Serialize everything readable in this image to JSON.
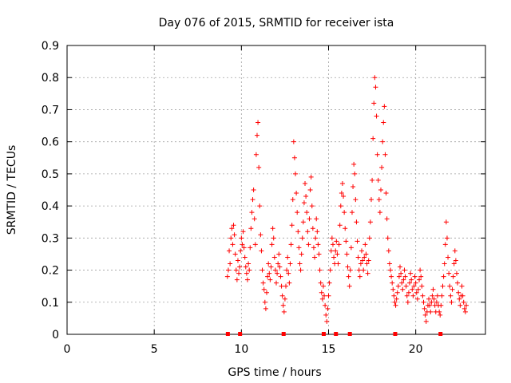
{
  "chart_data": {
    "type": "scatter",
    "title": "Day 076 of 2015, SRMTID for receiver ista",
    "xlabel": "GPS time / hours",
    "ylabel": "SRMTID / TECUs",
    "xlim": [
      0,
      24
    ],
    "ylim": [
      0,
      0.9
    ],
    "xticks": [
      0,
      5,
      10,
      15,
      20
    ],
    "yticks": [
      0,
      0.1,
      0.2,
      0.3,
      0.4,
      0.5,
      0.6,
      0.7,
      0.8,
      0.9
    ],
    "xtick_labels": [
      "0",
      "5",
      "10",
      "15",
      "20"
    ],
    "ytick_labels": [
      "0",
      "0.1",
      "0.2",
      "0.3",
      "0.4",
      "0.5",
      "0.6",
      "0.7",
      "0.8",
      "0.9"
    ],
    "grid": true,
    "marker": "+",
    "color": "#ff0000",
    "baseline_marks_x": [
      9.2,
      9.9,
      12.4,
      14.7,
      15.4,
      16.2,
      18.8,
      21.4
    ],
    "series": [
      {
        "name": "SRMTID",
        "points": [
          [
            9.2,
            0.18
          ],
          [
            9.25,
            0.2
          ],
          [
            9.3,
            0.26
          ],
          [
            9.35,
            0.22
          ],
          [
            9.4,
            0.3
          ],
          [
            9.45,
            0.33
          ],
          [
            9.5,
            0.28
          ],
          [
            9.55,
            0.34
          ],
          [
            9.6,
            0.31
          ],
          [
            9.65,
            0.25
          ],
          [
            9.7,
            0.2
          ],
          [
            9.75,
            0.17
          ],
          [
            9.8,
            0.23
          ],
          [
            9.85,
            0.19
          ],
          [
            9.9,
            0.21
          ],
          [
            9.95,
            0.26
          ],
          [
            10.0,
            0.3
          ],
          [
            10.05,
            0.28
          ],
          [
            10.1,
            0.32
          ],
          [
            10.15,
            0.27
          ],
          [
            10.2,
            0.24
          ],
          [
            10.25,
            0.21
          ],
          [
            10.3,
            0.19
          ],
          [
            10.35,
            0.17
          ],
          [
            10.4,
            0.22
          ],
          [
            10.45,
            0.2
          ],
          [
            10.5,
            0.27
          ],
          [
            10.55,
            0.33
          ],
          [
            10.6,
            0.38
          ],
          [
            10.65,
            0.42
          ],
          [
            10.7,
            0.45
          ],
          [
            10.75,
            0.36
          ],
          [
            10.8,
            0.28
          ],
          [
            10.85,
            0.56
          ],
          [
            10.9,
            0.62
          ],
          [
            10.95,
            0.66
          ],
          [
            11.0,
            0.52
          ],
          [
            11.05,
            0.4
          ],
          [
            11.1,
            0.31
          ],
          [
            11.15,
            0.26
          ],
          [
            11.2,
            0.2
          ],
          [
            11.25,
            0.16
          ],
          [
            11.3,
            0.14
          ],
          [
            11.35,
            0.1
          ],
          [
            11.4,
            0.08
          ],
          [
            11.45,
            0.13
          ],
          [
            11.5,
            0.18
          ],
          [
            11.55,
            0.22
          ],
          [
            11.6,
            0.19
          ],
          [
            11.65,
            0.17
          ],
          [
            11.7,
            0.21
          ],
          [
            11.75,
            0.28
          ],
          [
            11.8,
            0.33
          ],
          [
            11.85,
            0.3
          ],
          [
            11.9,
            0.24
          ],
          [
            11.95,
            0.2
          ],
          [
            12.0,
            0.16
          ],
          [
            12.05,
            0.19
          ],
          [
            12.1,
            0.22
          ],
          [
            12.15,
            0.25
          ],
          [
            12.2,
            0.21
          ],
          [
            12.25,
            0.18
          ],
          [
            12.3,
            0.15
          ],
          [
            12.35,
            0.12
          ],
          [
            12.4,
            0.09
          ],
          [
            12.45,
            0.07
          ],
          [
            12.5,
            0.11
          ],
          [
            12.55,
            0.15
          ],
          [
            12.6,
            0.2
          ],
          [
            12.65,
            0.24
          ],
          [
            12.7,
            0.19
          ],
          [
            12.75,
            0.16
          ],
          [
            12.8,
            0.22
          ],
          [
            12.85,
            0.28
          ],
          [
            12.9,
            0.34
          ],
          [
            12.95,
            0.42
          ],
          [
            13.0,
            0.6
          ],
          [
            13.05,
            0.55
          ],
          [
            13.1,
            0.5
          ],
          [
            13.15,
            0.44
          ],
          [
            13.2,
            0.38
          ],
          [
            13.25,
            0.32
          ],
          [
            13.3,
            0.27
          ],
          [
            13.35,
            0.22
          ],
          [
            13.4,
            0.2
          ],
          [
            13.45,
            0.25
          ],
          [
            13.5,
            0.3
          ],
          [
            13.55,
            0.35
          ],
          [
            13.6,
            0.41
          ],
          [
            13.65,
            0.47
          ],
          [
            13.7,
            0.43
          ],
          [
            13.75,
            0.38
          ],
          [
            13.8,
            0.32
          ],
          [
            13.85,
            0.28
          ],
          [
            13.9,
            0.36
          ],
          [
            13.95,
            0.45
          ],
          [
            14.0,
            0.49
          ],
          [
            14.05,
            0.4
          ],
          [
            14.1,
            0.33
          ],
          [
            14.15,
            0.27
          ],
          [
            14.2,
            0.24
          ],
          [
            14.25,
            0.3
          ],
          [
            14.3,
            0.36
          ],
          [
            14.35,
            0.32
          ],
          [
            14.4,
            0.28
          ],
          [
            14.45,
            0.25
          ],
          [
            14.5,
            0.2
          ],
          [
            14.55,
            0.16
          ],
          [
            14.6,
            0.13
          ],
          [
            14.65,
            0.11
          ],
          [
            14.7,
            0.15
          ],
          [
            14.75,
            0.12
          ],
          [
            14.8,
            0.09
          ],
          [
            14.85,
            0.06
          ],
          [
            14.9,
            0.04
          ],
          [
            14.95,
            0.08
          ],
          [
            15.0,
            0.12
          ],
          [
            15.05,
            0.16
          ],
          [
            15.1,
            0.2
          ],
          [
            15.15,
            0.26
          ],
          [
            15.2,
            0.3
          ],
          [
            15.25,
            0.28
          ],
          [
            15.3,
            0.24
          ],
          [
            15.35,
            0.22
          ],
          [
            15.4,
            0.26
          ],
          [
            15.45,
            0.29
          ],
          [
            15.5,
            0.25
          ],
          [
            15.55,
            0.22
          ],
          [
            15.6,
            0.28
          ],
          [
            15.65,
            0.34
          ],
          [
            15.7,
            0.4
          ],
          [
            15.75,
            0.44
          ],
          [
            15.8,
            0.47
          ],
          [
            15.85,
            0.43
          ],
          [
            15.9,
            0.38
          ],
          [
            15.95,
            0.33
          ],
          [
            16.0,
            0.29
          ],
          [
            16.05,
            0.25
          ],
          [
            16.1,
            0.21
          ],
          [
            16.15,
            0.18
          ],
          [
            16.2,
            0.15
          ],
          [
            16.25,
            0.2
          ],
          [
            16.3,
            0.27
          ],
          [
            16.35,
            0.38
          ],
          [
            16.4,
            0.46
          ],
          [
            16.45,
            0.53
          ],
          [
            16.5,
            0.5
          ],
          [
            16.55,
            0.42
          ],
          [
            16.6,
            0.35
          ],
          [
            16.65,
            0.29
          ],
          [
            16.7,
            0.24
          ],
          [
            16.75,
            0.2
          ],
          [
            16.8,
            0.18
          ],
          [
            16.85,
            0.22
          ],
          [
            16.9,
            0.26
          ],
          [
            16.95,
            0.23
          ],
          [
            17.0,
            0.2
          ],
          [
            17.05,
            0.24
          ],
          [
            17.1,
            0.28
          ],
          [
            17.15,
            0.25
          ],
          [
            17.2,
            0.22
          ],
          [
            17.25,
            0.19
          ],
          [
            17.3,
            0.23
          ],
          [
            17.35,
            0.3
          ],
          [
            17.4,
            0.35
          ],
          [
            17.45,
            0.42
          ],
          [
            17.5,
            0.48
          ],
          [
            17.55,
            0.61
          ],
          [
            17.6,
            0.72
          ],
          [
            17.65,
            0.8
          ],
          [
            17.7,
            0.77
          ],
          [
            17.75,
            0.68
          ],
          [
            17.8,
            0.56
          ],
          [
            17.85,
            0.48
          ],
          [
            17.9,
            0.42
          ],
          [
            17.95,
            0.38
          ],
          [
            18.0,
            0.45
          ],
          [
            18.05,
            0.52
          ],
          [
            18.1,
            0.6
          ],
          [
            18.15,
            0.66
          ],
          [
            18.2,
            0.71
          ],
          [
            18.25,
            0.56
          ],
          [
            18.3,
            0.44
          ],
          [
            18.35,
            0.36
          ],
          [
            18.4,
            0.3
          ],
          [
            18.45,
            0.26
          ],
          [
            18.5,
            0.22
          ],
          [
            18.55,
            0.2
          ],
          [
            18.6,
            0.18
          ],
          [
            18.65,
            0.16
          ],
          [
            18.7,
            0.14
          ],
          [
            18.75,
            0.12
          ],
          [
            18.8,
            0.1
          ],
          [
            18.85,
            0.09
          ],
          [
            18.9,
            0.11
          ],
          [
            18.95,
            0.13
          ],
          [
            19.0,
            0.15
          ],
          [
            19.05,
            0.18
          ],
          [
            19.1,
            0.21
          ],
          [
            19.15,
            0.19
          ],
          [
            19.2,
            0.16
          ],
          [
            19.25,
            0.14
          ],
          [
            19.3,
            0.17
          ],
          [
            19.35,
            0.2
          ],
          [
            19.4,
            0.18
          ],
          [
            19.45,
            0.15
          ],
          [
            19.5,
            0.12
          ],
          [
            19.55,
            0.1
          ],
          [
            19.6,
            0.13
          ],
          [
            19.65,
            0.16
          ],
          [
            19.7,
            0.19
          ],
          [
            19.75,
            0.17
          ],
          [
            19.8,
            0.14
          ],
          [
            19.85,
            0.12
          ],
          [
            19.9,
            0.15
          ],
          [
            19.95,
            0.18
          ],
          [
            20.0,
            0.16
          ],
          [
            20.05,
            0.13
          ],
          [
            20.1,
            0.11
          ],
          [
            20.15,
            0.14
          ],
          [
            20.2,
            0.17
          ],
          [
            20.25,
            0.2
          ],
          [
            20.3,
            0.18
          ],
          [
            20.35,
            0.15
          ],
          [
            20.4,
            0.12
          ],
          [
            20.45,
            0.1
          ],
          [
            20.5,
            0.08
          ],
          [
            20.55,
            0.06
          ],
          [
            20.6,
            0.04
          ],
          [
            20.65,
            0.07
          ],
          [
            20.7,
            0.09
          ],
          [
            20.75,
            0.11
          ],
          [
            20.8,
            0.09
          ],
          [
            20.85,
            0.07
          ],
          [
            20.9,
            0.1
          ],
          [
            20.95,
            0.12
          ],
          [
            21.0,
            0.14
          ],
          [
            21.05,
            0.11
          ],
          [
            21.1,
            0.09
          ],
          [
            21.15,
            0.07
          ],
          [
            21.2,
            0.1
          ],
          [
            21.25,
            0.12
          ],
          [
            21.3,
            0.09
          ],
          [
            21.35,
            0.07
          ],
          [
            21.4,
            0.06
          ],
          [
            21.45,
            0.09
          ],
          [
            21.5,
            0.12
          ],
          [
            21.55,
            0.15
          ],
          [
            21.6,
            0.18
          ],
          [
            21.65,
            0.22
          ],
          [
            21.7,
            0.28
          ],
          [
            21.75,
            0.35
          ],
          [
            21.8,
            0.3
          ],
          [
            21.85,
            0.24
          ],
          [
            21.9,
            0.19
          ],
          [
            21.95,
            0.15
          ],
          [
            22.0,
            0.12
          ],
          [
            22.05,
            0.1
          ],
          [
            22.1,
            0.14
          ],
          [
            22.15,
            0.18
          ],
          [
            22.2,
            0.22
          ],
          [
            22.25,
            0.26
          ],
          [
            22.3,
            0.23
          ],
          [
            22.35,
            0.19
          ],
          [
            22.4,
            0.16
          ],
          [
            22.45,
            0.13
          ],
          [
            22.5,
            0.11
          ],
          [
            22.55,
            0.09
          ],
          [
            22.6,
            0.12
          ],
          [
            22.65,
            0.15
          ],
          [
            22.7,
            0.12
          ],
          [
            22.75,
            0.1
          ],
          [
            22.8,
            0.08
          ],
          [
            22.85,
            0.07
          ],
          [
            22.9,
            0.09
          ]
        ]
      }
    ]
  }
}
